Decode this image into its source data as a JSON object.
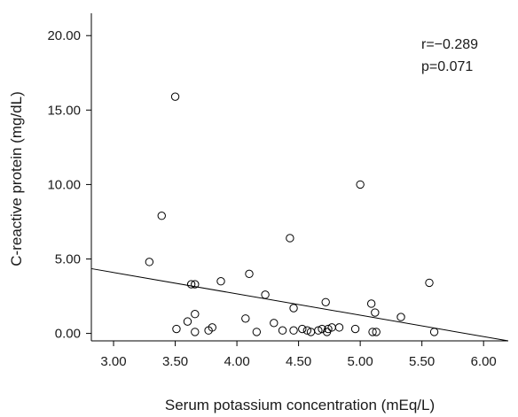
{
  "chart_data": {
    "type": "scatter",
    "title": "",
    "xlabel": "Serum potassium concentration (mEq/L)",
    "ylabel": "C-reactive protein (mg/dL)",
    "xlim": [
      2.82,
      6.2
    ],
    "ylim": [
      -0.5,
      21.5
    ],
    "xticks": [
      3.0,
      3.5,
      4.0,
      4.5,
      5.0,
      5.5,
      6.0
    ],
    "xtick_labels": [
      "3.00",
      "3.50",
      "4.00",
      "4.50",
      "5.00",
      "5.50",
      "6.00"
    ],
    "yticks": [
      0,
      5,
      10,
      15,
      20
    ],
    "ytick_labels": [
      "0.00",
      "5.00",
      "10.00",
      "15.00",
      "20.00"
    ],
    "grid": false,
    "annotations": [
      "r=−0.289",
      "p=0.071"
    ],
    "fit_line": {
      "x": [
        2.82,
        6.2
      ],
      "y": [
        4.35,
        -0.5
      ]
    },
    "points": [
      {
        "x": 3.29,
        "y": 4.8
      },
      {
        "x": 3.39,
        "y": 7.9
      },
      {
        "x": 3.5,
        "y": 15.9
      },
      {
        "x": 3.51,
        "y": 0.3
      },
      {
        "x": 3.6,
        "y": 0.8
      },
      {
        "x": 3.63,
        "y": 3.3
      },
      {
        "x": 3.66,
        "y": 3.3
      },
      {
        "x": 3.66,
        "y": 1.3
      },
      {
        "x": 3.66,
        "y": 0.1
      },
      {
        "x": 3.77,
        "y": 0.2
      },
      {
        "x": 3.8,
        "y": 0.4
      },
      {
        "x": 3.87,
        "y": 3.5
      },
      {
        "x": 4.07,
        "y": 1.0
      },
      {
        "x": 4.1,
        "y": 4.0
      },
      {
        "x": 4.16,
        "y": 0.1
      },
      {
        "x": 4.23,
        "y": 2.6
      },
      {
        "x": 4.3,
        "y": 0.7
      },
      {
        "x": 4.37,
        "y": 0.2
      },
      {
        "x": 4.43,
        "y": 6.4
      },
      {
        "x": 4.46,
        "y": 1.7
      },
      {
        "x": 4.46,
        "y": 0.2
      },
      {
        "x": 4.53,
        "y": 0.3
      },
      {
        "x": 4.57,
        "y": 0.2
      },
      {
        "x": 4.6,
        "y": 0.1
      },
      {
        "x": 4.66,
        "y": 0.2
      },
      {
        "x": 4.69,
        "y": 0.3
      },
      {
        "x": 4.72,
        "y": 2.1
      },
      {
        "x": 4.73,
        "y": 0.1
      },
      {
        "x": 4.74,
        "y": 0.3
      },
      {
        "x": 4.77,
        "y": 0.4
      },
      {
        "x": 4.83,
        "y": 0.4
      },
      {
        "x": 4.96,
        "y": 0.3
      },
      {
        "x": 5.0,
        "y": 10.0
      },
      {
        "x": 5.09,
        "y": 2.0
      },
      {
        "x": 5.1,
        "y": 0.1
      },
      {
        "x": 5.12,
        "y": 1.4
      },
      {
        "x": 5.13,
        "y": 0.1
      },
      {
        "x": 5.33,
        "y": 1.1
      },
      {
        "x": 5.56,
        "y": 3.4
      },
      {
        "x": 5.6,
        "y": 0.1
      }
    ]
  }
}
